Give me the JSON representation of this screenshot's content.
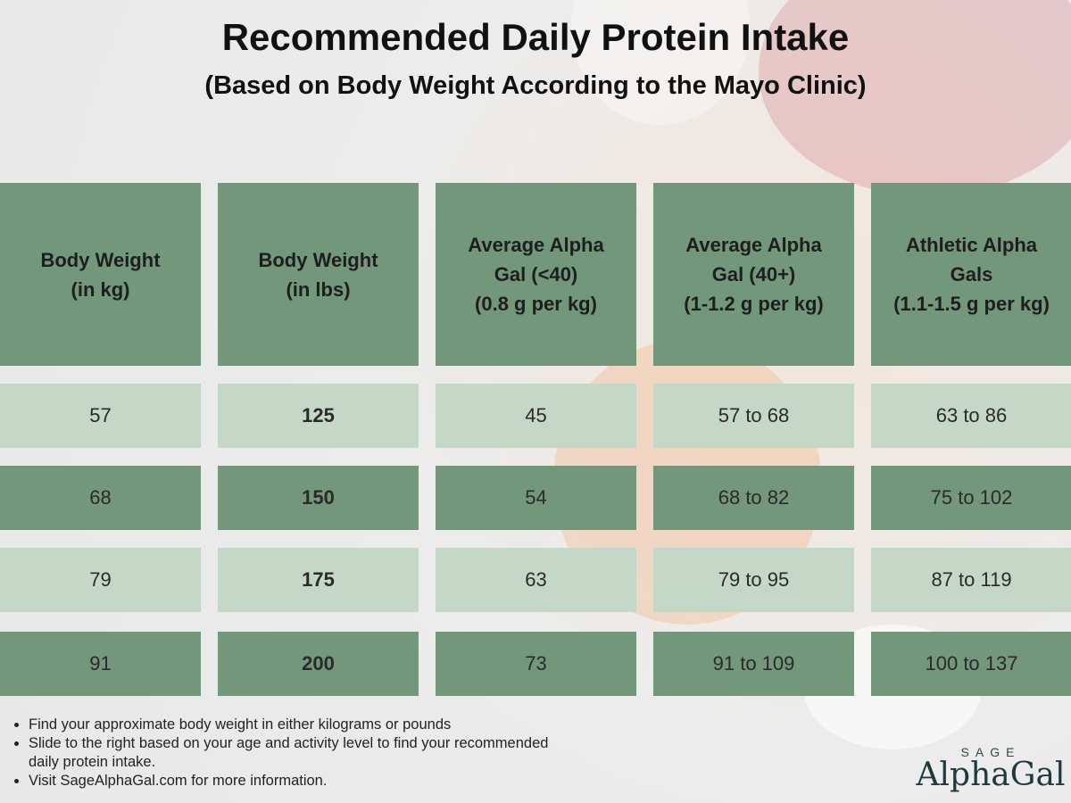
{
  "header": {
    "title": "Recommended Daily Protein Intake",
    "subtitle": "(Based on Body Weight According to the Mayo Clinic)"
  },
  "table": {
    "columns": [
      [
        "Body Weight",
        "(in kg)"
      ],
      [
        "Body Weight",
        "(in lbs)"
      ],
      [
        "Average Alpha",
        "Gal (<40)",
        "(0.8 g per kg)"
      ],
      [
        "Average Alpha",
        "Gal (40+)",
        "(1-1.2 g per kg)"
      ],
      [
        "Athletic Alpha",
        "Gals",
        "(1.1-1.5 g per kg)"
      ]
    ],
    "rows": [
      [
        "57",
        "125",
        "45",
        "57 to 68",
        "63 to 86"
      ],
      [
        "68",
        "150",
        "54",
        "68 to 82",
        "75 to 102"
      ],
      [
        "79",
        "175",
        "63",
        "79 to 95",
        "87 to 119"
      ],
      [
        "91",
        "200",
        "73",
        "91 to 109",
        "100 to 137"
      ]
    ]
  },
  "notes": [
    "Find your approximate body weight in either kilograms or pounds",
    "Slide to the right based on your age and activity level to find your recommended daily protein intake.",
    "Visit SageAlphaGal.com for more information."
  ],
  "logo": {
    "top": "SAGE",
    "name": "AlphaGal"
  }
}
